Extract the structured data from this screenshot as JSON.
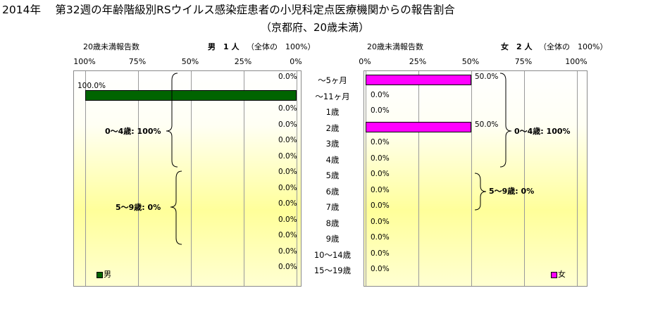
{
  "title": "2014年　 第32週の年齢階級別RSウイルス感染症患者の小児科定点医療機関からの報告割合",
  "subtitle": "（京都府、20歳未満）",
  "male": {
    "report_label": "20歳未満報告数",
    "total_label": "男　1 人",
    "total_note": "（全体の　100%）",
    "ticks": [
      "100%",
      "75%",
      "50%",
      "25%",
      "0%"
    ],
    "value_labels": [
      "0.0%",
      "100.0%",
      "0.0%",
      "0.0%",
      "0.0%",
      "0.0%",
      "0.0%",
      "0.0%",
      "0.0%",
      "0.0%",
      "0.0%",
      "0.0%",
      "0.0%"
    ],
    "group_labels": [
      "0～4歳: 100%",
      "5～9歳: 0%"
    ],
    "legend": "男",
    "color": "#006400"
  },
  "female": {
    "report_label": "20歳未満報告数",
    "total_label": "女　2 人",
    "total_note": "（全体の　100%）",
    "ticks": [
      "0%",
      "25%",
      "50%",
      "75%",
      "100%"
    ],
    "value_labels": [
      "50.0%",
      "0.0%",
      "0.0%",
      "50.0%",
      "0.0%",
      "0.0%",
      "0.0%",
      "0.0%",
      "0.0%",
      "0.0%",
      "0.0%",
      "0.0%",
      "0.0%"
    ],
    "group_labels": [
      "0～4歳: 100%",
      "5～9歳: 0%"
    ],
    "legend": "女",
    "color": "#ff00ff"
  },
  "chart_data": {
    "type": "bar",
    "orientation": "horizontal-butterfly",
    "categories": [
      "～5ヶ月",
      "～11ヶ月",
      "1歳",
      "2歳",
      "3歳",
      "4歳",
      "5歳",
      "6歳",
      "7歳",
      "8歳",
      "9歳",
      "10～14歳",
      "15～19歳"
    ],
    "series": [
      {
        "name": "男",
        "values": [
          0,
          100,
          0,
          0,
          0,
          0,
          0,
          0,
          0,
          0,
          0,
          0,
          0
        ]
      },
      {
        "name": "女",
        "values": [
          50,
          0,
          0,
          50,
          0,
          0,
          0,
          0,
          0,
          0,
          0,
          0,
          0
        ]
      }
    ],
    "xlim": [
      0,
      100
    ],
    "unit": "%"
  }
}
